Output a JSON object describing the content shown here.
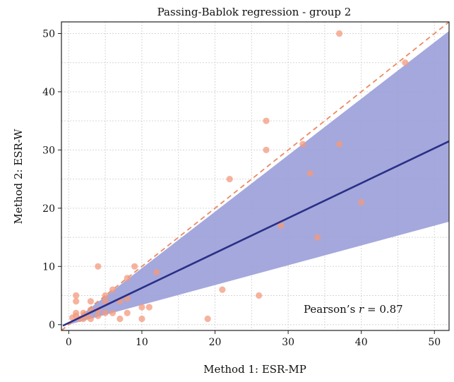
{
  "chart_data": {
    "type": "scatter",
    "title": "Passing-Bablok regression - group 2",
    "xlabel": "Method 1: ESR-MP",
    "ylabel": "Method 2: ESR-W",
    "xlim": [
      -1,
      52
    ],
    "ylim": [
      -1,
      52
    ],
    "xticks": [
      "0",
      "10",
      "20",
      "30",
      "40",
      "50"
    ],
    "yticks": [
      "0",
      "10",
      "20",
      "30",
      "40",
      "50"
    ],
    "grid": true,
    "regression_line": {
      "slope": 0.6,
      "intercept": 0.3
    },
    "confidence_band": {
      "lower_slope": 0.34,
      "upper_slope": 0.97,
      "intercept": 0.0
    },
    "identity_line": {
      "slope": 1.0,
      "intercept": 0.0
    },
    "annotation": {
      "prefix": "Pearson’s ",
      "italic": "r",
      "suffix": " = 0.87"
    },
    "colors": {
      "points": "#f39a7e",
      "band": "#9a9fd8",
      "regression": "#2a2f86",
      "identity": "#ec8a5f"
    },
    "points": [
      [
        0.5,
        1.2
      ],
      [
        1,
        2
      ],
      [
        1,
        1.5
      ],
      [
        1,
        4
      ],
      [
        1,
        5
      ],
      [
        1.5,
        1
      ],
      [
        2,
        2
      ],
      [
        2,
        1
      ],
      [
        2.5,
        1.5
      ],
      [
        3,
        1
      ],
      [
        3,
        2.5
      ],
      [
        3,
        4
      ],
      [
        4,
        1.5
      ],
      [
        4,
        2.5
      ],
      [
        4,
        10
      ],
      [
        5,
        2
      ],
      [
        5,
        4
      ],
      [
        5,
        5
      ],
      [
        6,
        2
      ],
      [
        6,
        6
      ],
      [
        7,
        1
      ],
      [
        7,
        4
      ],
      [
        8,
        2
      ],
      [
        8,
        4.5
      ],
      [
        8,
        8
      ],
      [
        9,
        10
      ],
      [
        10,
        3
      ],
      [
        10,
        1
      ],
      [
        11,
        3
      ],
      [
        12,
        9
      ],
      [
        19,
        1
      ],
      [
        21,
        6
      ],
      [
        22,
        25
      ],
      [
        26,
        5
      ],
      [
        27,
        35
      ],
      [
        27,
        30
      ],
      [
        29,
        17
      ],
      [
        32,
        31
      ],
      [
        33,
        26
      ],
      [
        34,
        15
      ],
      [
        37,
        50
      ],
      [
        37,
        31
      ],
      [
        40,
        21
      ],
      [
        46,
        45
      ]
    ]
  }
}
